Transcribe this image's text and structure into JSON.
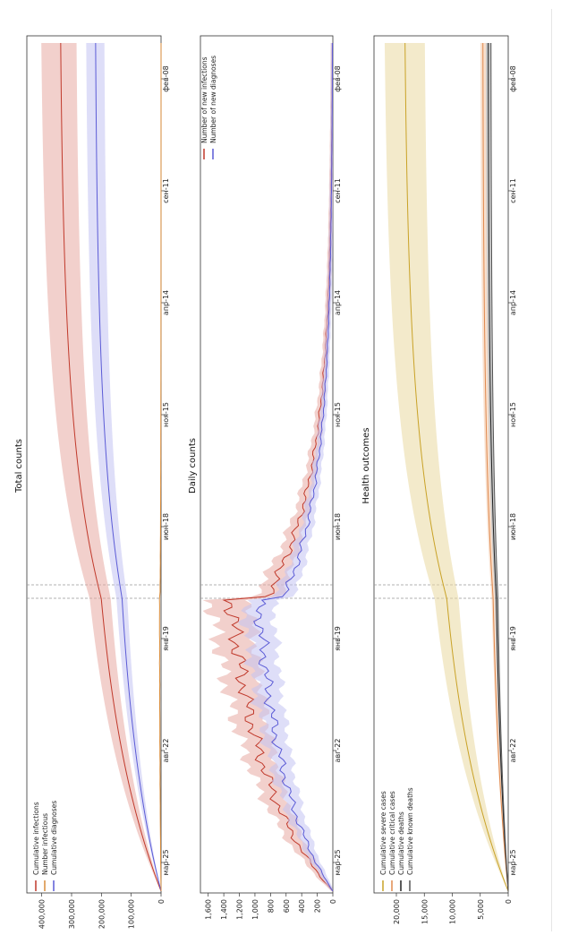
{
  "x_axis": {
    "ticks": [
      "мар-25",
      "авг-22",
      "янв-19",
      "июн-18",
      "ноя-15",
      "апр-14",
      "сен-11",
      "фев-08"
    ]
  },
  "panels": [
    {
      "title": "Total counts",
      "ylim": [
        0,
        450000
      ],
      "yticks": [
        "0",
        "100,000",
        "200,000",
        "300,000",
        "400,000"
      ],
      "legend": [
        "Cumulative infections",
        "Number infectious",
        "Cumulative diagnoses"
      ]
    },
    {
      "title": "Daily counts",
      "ylim": [
        0,
        1700
      ],
      "yticks": [
        "0",
        "200",
        "400",
        "600",
        "800",
        "1,000",
        "1,200",
        "1,400",
        "1,600"
      ],
      "legend": [
        "Number of new infections",
        "Number of new diagnoses"
      ]
    },
    {
      "title": "Health outcomes",
      "ylim": [
        0,
        24000
      ],
      "yticks": [
        "0",
        "5,000",
        "10,000",
        "15,000",
        "20,000"
      ],
      "legend": [
        "Cumulative severe cases",
        "Cumulative critical cases",
        "Cumulative deaths",
        "Cumulative known deaths"
      ]
    }
  ],
  "colors": {
    "infections": "#c0392b",
    "infectious": "#d98c3a",
    "diagnoses": "#5b5bd6",
    "severe": "#c9a227",
    "critical": "#e08a4f",
    "deaths": "#222222",
    "known_deaths": "#555555",
    "infections_band": "#e7a9a3",
    "diagnoses_band": "#c3c3f2",
    "severe_band": "#ead9a0",
    "critical_band": "#f2c6a6",
    "deaths_band": "#9a9a9a"
  },
  "chart_data": [
    {
      "type": "line",
      "title": "Total counts",
      "x": [
        "мар-25",
        "авг-22",
        "янв-19",
        "июн-18",
        "ноя-15",
        "апр-14",
        "сен-11",
        "фев-08"
      ],
      "ylim": [
        0,
        450000
      ],
      "legend_position": "top-left",
      "series": [
        {
          "name": "Cumulative infections",
          "values": [
            0,
            90000,
            220000,
            290000,
            320000,
            335000,
            340000,
            342000
          ],
          "lower": [
            0,
            70000,
            180000,
            250000,
            270000,
            280000,
            285000,
            288000
          ],
          "upper": [
            0,
            110000,
            260000,
            340000,
            380000,
            400000,
            405000,
            408000
          ]
        },
        {
          "name": "Number infectious",
          "values": [
            0,
            3000,
            5000,
            2000,
            800,
            300,
            150,
            100
          ]
        },
        {
          "name": "Cumulative diagnoses",
          "values": [
            0,
            60000,
            160000,
            200000,
            215000,
            220000,
            222000,
            223000
          ],
          "lower": [
            0,
            45000,
            130000,
            175000,
            185000,
            190000,
            192000,
            193000
          ],
          "upper": [
            0,
            80000,
            190000,
            225000,
            240000,
            250000,
            253000,
            255000
          ]
        }
      ]
    },
    {
      "type": "line",
      "title": "Daily counts",
      "x": [
        "мар-25",
        "авг-22",
        "янв-19",
        "июн-18",
        "ноя-15",
        "апр-14",
        "сен-11",
        "фев-08"
      ],
      "ylim": [
        0,
        1700
      ],
      "legend_position": "top-right",
      "series": [
        {
          "name": "Number of new infections",
          "values": [
            0,
            600,
            1150,
            560,
            230,
            110,
            60,
            30
          ]
        },
        {
          "name": "Number of new diagnoses",
          "values": [
            0,
            380,
            860,
            440,
            180,
            90,
            50,
            25
          ]
        }
      ]
    },
    {
      "type": "line",
      "title": "Health outcomes",
      "x": [
        "мар-25",
        "авг-22",
        "янв-19",
        "июн-18",
        "ноя-15",
        "апр-14",
        "сен-11",
        "фев-08"
      ],
      "ylim": [
        0,
        24000
      ],
      "legend_position": "top-left",
      "series": [
        {
          "name": "Cumulative severe cases",
          "values": [
            0,
            7000,
            14500,
            17500,
            18300,
            18600,
            18700,
            18750
          ],
          "lower": [
            0,
            5500,
            11500,
            14000,
            14800,
            15000,
            15100,
            15150
          ],
          "upper": [
            0,
            8500,
            17500,
            21000,
            22000,
            22300,
            22400,
            22450
          ]
        },
        {
          "name": "Cumulative critical cases",
          "values": [
            0,
            1600,
            3400,
            4300,
            4500,
            4550,
            4580,
            4600
          ]
        },
        {
          "name": "Cumulative deaths",
          "values": [
            0,
            1300,
            2700,
            3400,
            3550,
            3600,
            3620,
            3630
          ]
        },
        {
          "name": "Cumulative known deaths",
          "values": [
            0,
            1100,
            2300,
            2900,
            3050,
            3100,
            3120,
            3130
          ]
        }
      ]
    }
  ]
}
